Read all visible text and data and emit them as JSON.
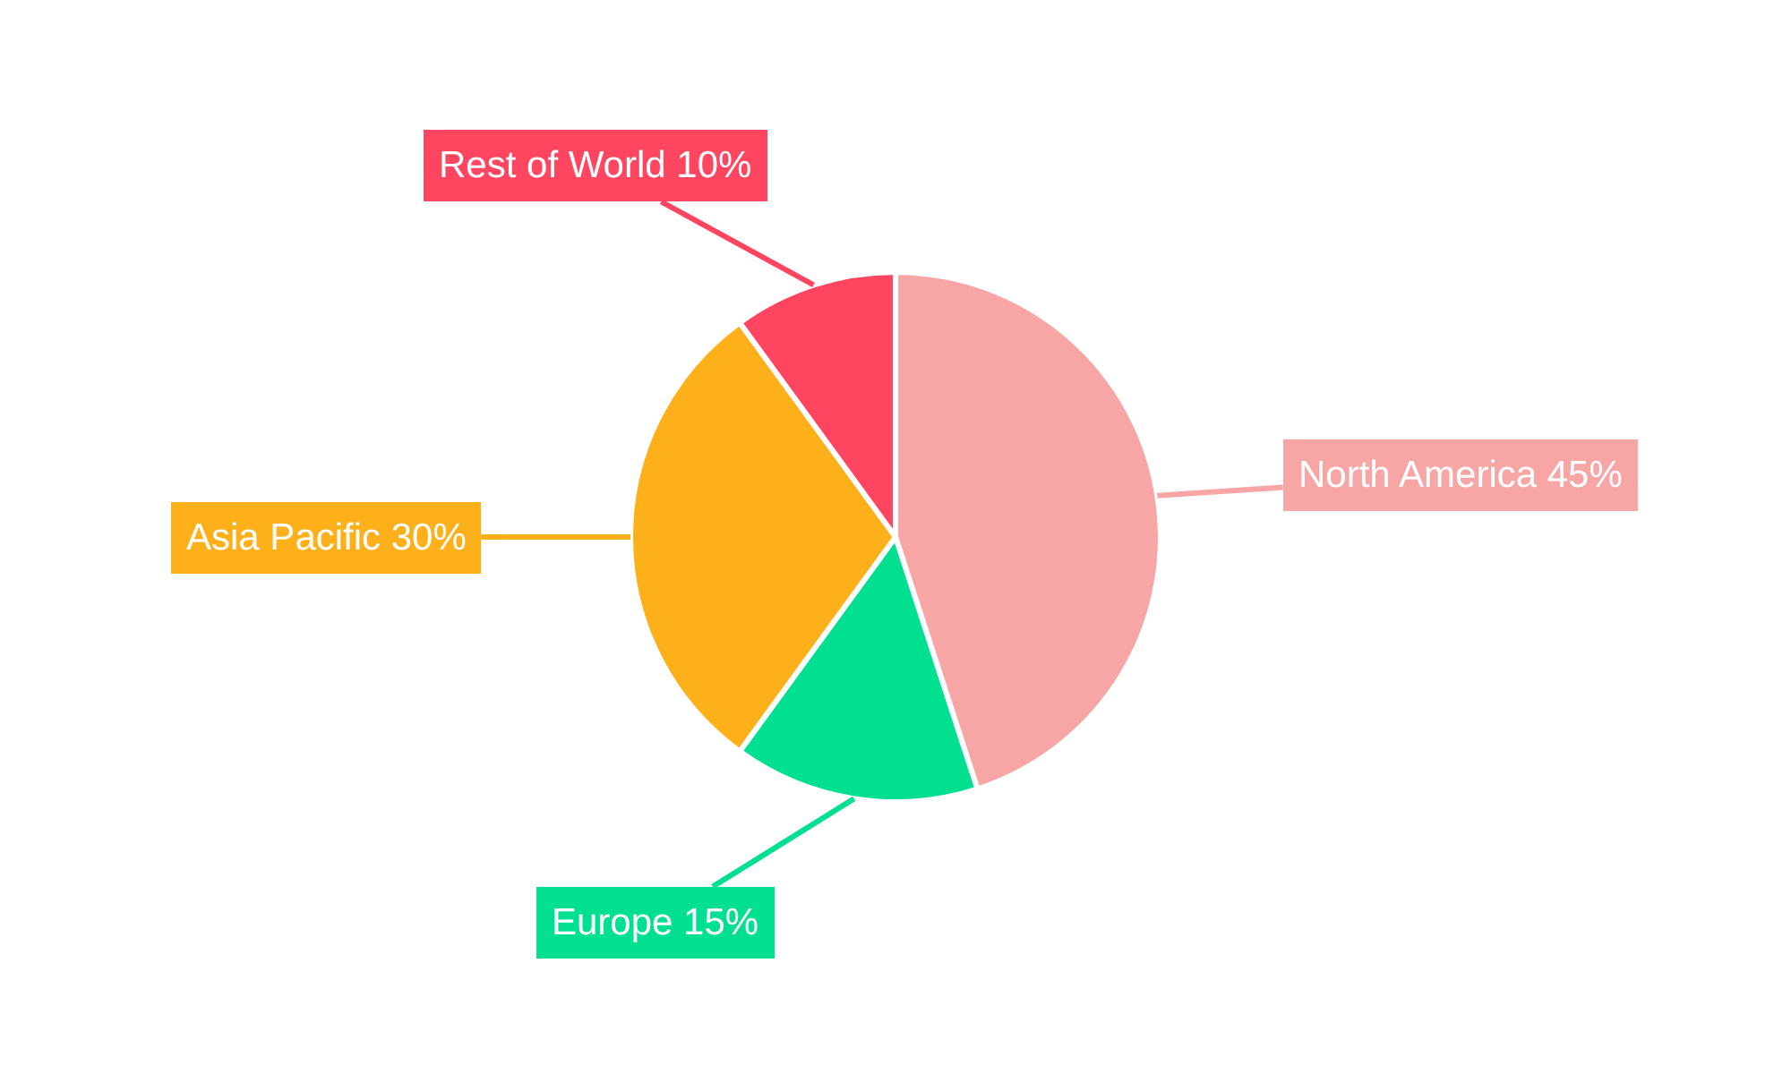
{
  "chart_data": {
    "type": "pie",
    "categories": [
      "North America",
      "Europe",
      "Asia Pacific",
      "Rest of World"
    ],
    "values": [
      45,
      15,
      30,
      10
    ],
    "value_labels": [
      "45%",
      "15%",
      "30%",
      "10%"
    ],
    "colors": [
      "#f8a5a5",
      "#00e090",
      "#fdb01a",
      "#ff4560"
    ],
    "legend": false
  }
}
